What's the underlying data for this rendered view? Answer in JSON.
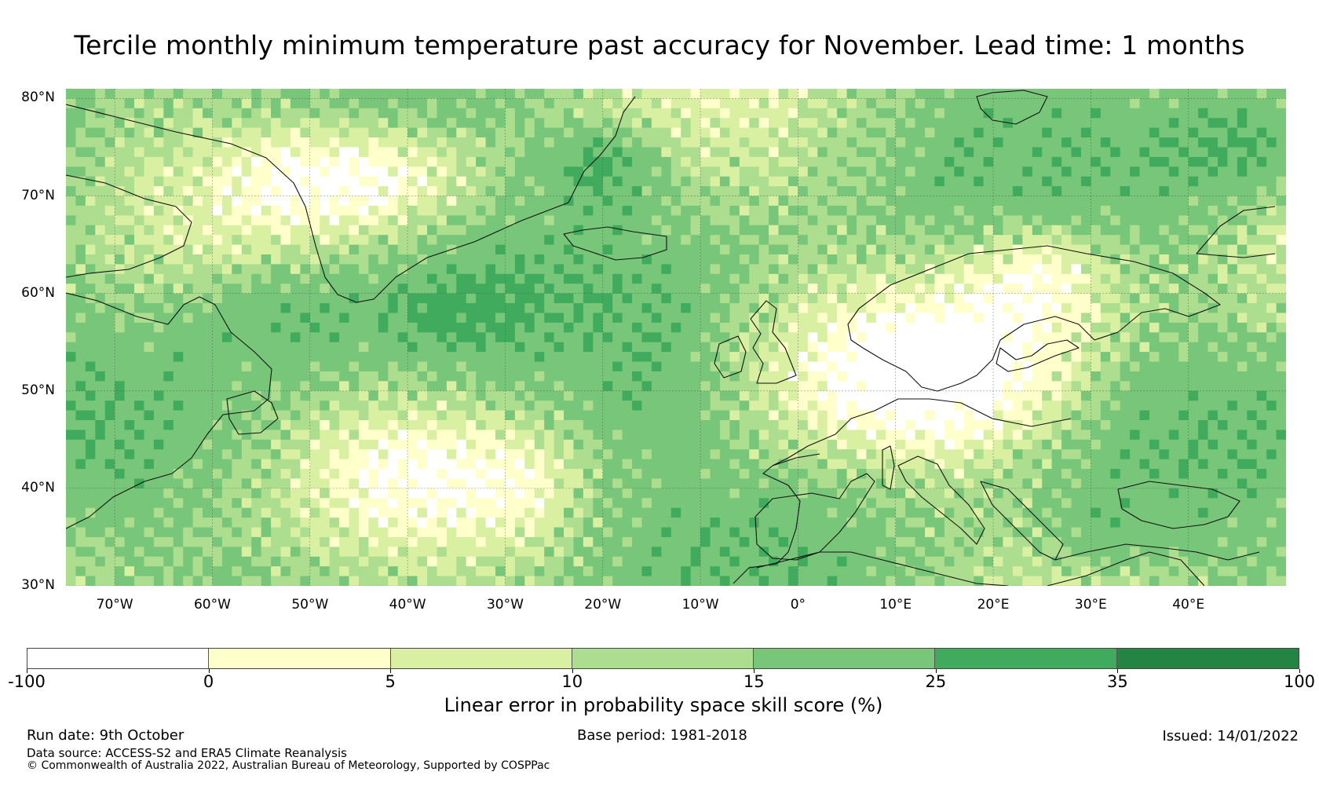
{
  "title": "Tercile monthly minimum temperature past accuracy for November. Lead time: 1 months",
  "map": {
    "projection": "plate-carree",
    "lon_range": [
      -75,
      50
    ],
    "lat_range": [
      30,
      81
    ],
    "lat_ticks": [
      {
        "value": 80,
        "label": "80°N"
      },
      {
        "value": 70,
        "label": "70°N"
      },
      {
        "value": 60,
        "label": "60°N"
      },
      {
        "value": 50,
        "label": "50°N"
      },
      {
        "value": 40,
        "label": "40°N"
      },
      {
        "value": 30,
        "label": "30°N"
      }
    ],
    "lon_ticks": [
      {
        "value": -70,
        "label": "70°W"
      },
      {
        "value": -60,
        "label": "60°W"
      },
      {
        "value": -50,
        "label": "50°W"
      },
      {
        "value": -40,
        "label": "40°W"
      },
      {
        "value": -30,
        "label": "30°W"
      },
      {
        "value": -20,
        "label": "20°W"
      },
      {
        "value": -10,
        "label": "10°W"
      },
      {
        "value": 0,
        "label": "0°"
      },
      {
        "value": 10,
        "label": "10°E"
      },
      {
        "value": 20,
        "label": "20°E"
      },
      {
        "value": 30,
        "label": "30°E"
      },
      {
        "value": 40,
        "label": "40°E"
      }
    ]
  },
  "colorbar": {
    "title": "Linear error in probability space skill score (%)",
    "boundaries": [
      "-100",
      "0",
      "5",
      "10",
      "15",
      "25",
      "35",
      "100"
    ],
    "colors": [
      "#ffffff",
      "#ffffcc",
      "#d9f0a3",
      "#addd8e",
      "#78c679",
      "#41ab5d",
      "#238443"
    ]
  },
  "footer": {
    "run_date": "Run date: 9th October",
    "base_period": "Base period: 1981-2018",
    "issued": "Issued: 14/01/2022",
    "data_source": "Data source: ACCESS-S2 and ERA5 Climate Reanalysis",
    "copyright": "© Commonwealth of Australia 2022, Australian Bureau of Meteorology, Supported by COSPPac"
  }
}
